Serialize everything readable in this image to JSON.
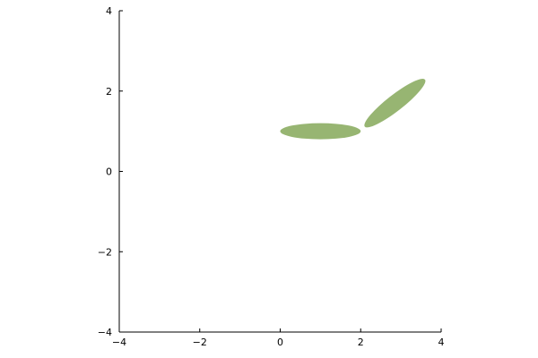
{
  "chart_data": {
    "type": "scatter",
    "title": "",
    "xlabel": "",
    "ylabel": "",
    "xlim": [
      -4,
      4
    ],
    "ylim": [
      -4,
      4
    ],
    "xticks": [
      -4,
      -2,
      0,
      2,
      4
    ],
    "yticks": [
      -4,
      -2,
      0,
      2,
      4
    ],
    "xtick_labels": [
      "−4",
      "−2",
      "0",
      "2",
      "4"
    ],
    "ytick_labels": [
      "−4",
      "−2",
      "0",
      "2",
      "4"
    ],
    "grid": false,
    "legend": "none",
    "colors": {
      "fill": "#97b572",
      "axis": "#000000"
    },
    "shapes": [
      {
        "kind": "ellipse",
        "center": [
          1.0,
          1.0
        ],
        "semi_axes": [
          1.0,
          0.2
        ],
        "angle_deg": 0
      },
      {
        "kind": "ellipse",
        "center": [
          2.85,
          1.7
        ],
        "semi_axes": [
          0.95,
          0.2
        ],
        "angle_deg": 38
      }
    ]
  }
}
